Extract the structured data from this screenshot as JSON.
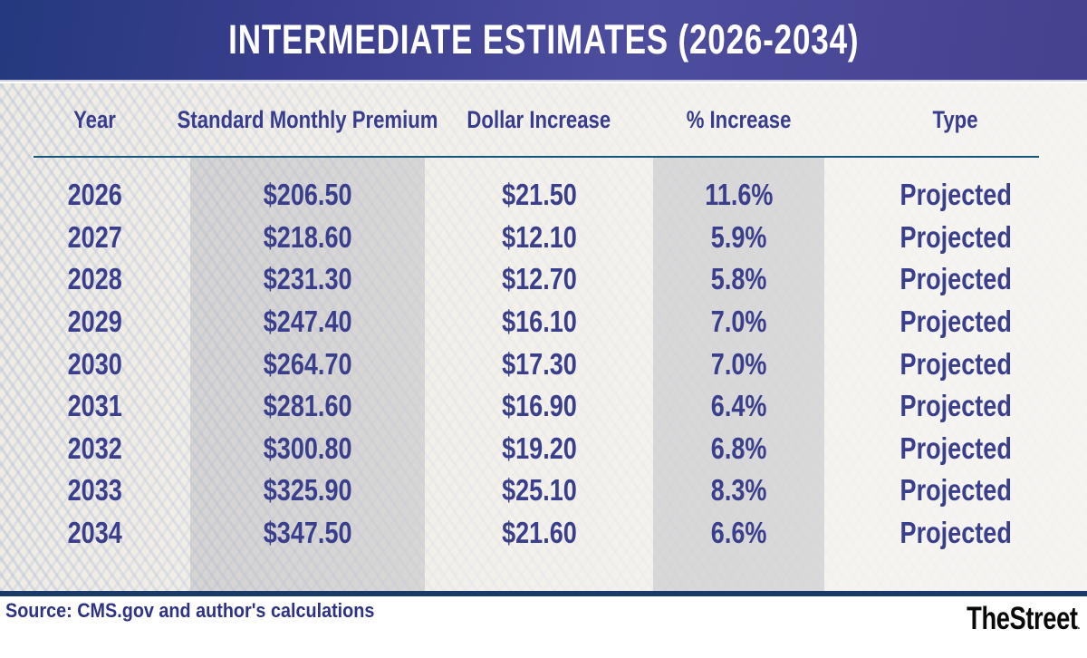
{
  "banner": {
    "title": "INTERMEDIATE ESTIMATES (2026-2034)"
  },
  "chart_data": {
    "type": "table",
    "title": "INTERMEDIATE ESTIMATES (2026-2034)",
    "columns": [
      "Year",
      "Standard Monthly Premium",
      "Dollar Increase",
      "% Increase",
      "Type"
    ],
    "rows": [
      [
        "2026",
        "$206.50",
        "$21.50",
        "11.6%",
        "Projected"
      ],
      [
        "2027",
        "$218.60",
        "$12.10",
        "5.9%",
        "Projected"
      ],
      [
        "2028",
        "$231.30",
        "$12.70",
        "5.8%",
        "Projected"
      ],
      [
        "2029",
        "$247.40",
        "$16.10",
        "7.0%",
        "Projected"
      ],
      [
        "2030",
        "$264.70",
        "$17.30",
        "7.0%",
        "Projected"
      ],
      [
        "2031",
        "$281.60",
        "$16.90",
        "6.4%",
        "Projected"
      ],
      [
        "2032",
        "$300.80",
        "$19.20",
        "6.8%",
        "Projected"
      ],
      [
        "2033",
        "$325.90",
        "$25.10",
        "8.3%",
        "Projected"
      ],
      [
        "2034",
        "$347.50",
        "$21.60",
        "6.6%",
        "Projected"
      ]
    ],
    "highlighted_columns": [
      "Standard Monthly Premium",
      "% Increase"
    ]
  },
  "footer": {
    "source": "Source: CMS.gov and author's calculations",
    "brand": "TheStreet",
    "brand_mark": "."
  },
  "colors": {
    "banner_gradient_left": "#24397f",
    "banner_gradient_center": "#4d4d9e",
    "banner_gradient_right": "#46418f",
    "banner_text": "#ffffff",
    "table_text": "#3a3f8c",
    "header_rule": "#15567a",
    "column_band": "rgba(139,144,160,0.26)",
    "table_background": "#f0ece2",
    "texture_blue": "#bbc6dd",
    "footer_bar": "#1a3a68",
    "source_text": "#2e3285",
    "brand_text": "#0a0a0a"
  }
}
